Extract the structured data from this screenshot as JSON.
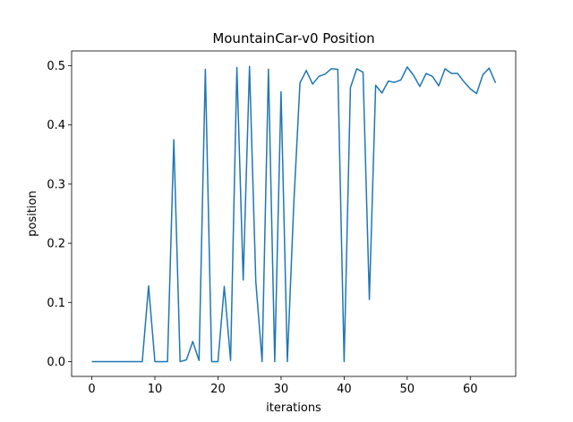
{
  "chart_data": {
    "type": "line",
    "title": "MountainCar-v0 Position",
    "xlabel": "iterations",
    "ylabel": "position",
    "xlim": [
      -3.2,
      67.2
    ],
    "ylim": [
      -0.025,
      0.525
    ],
    "xticks": [
      0,
      10,
      20,
      30,
      40,
      50,
      60
    ],
    "yticks": [
      0.0,
      0.1,
      0.2,
      0.3,
      0.4,
      0.5
    ],
    "xtick_labels": [
      "0",
      "10",
      "20",
      "30",
      "40",
      "50",
      "60"
    ],
    "ytick_labels": [
      "0.0",
      "0.1",
      "0.2",
      "0.3",
      "0.4",
      "0.5"
    ],
    "grid": false,
    "series": [
      {
        "color": "#1f77b4",
        "x": [
          0,
          1,
          2,
          3,
          4,
          5,
          6,
          7,
          8,
          9,
          10,
          11,
          12,
          13,
          14,
          15,
          16,
          17,
          18,
          19,
          20,
          21,
          22,
          23,
          24,
          25,
          26,
          27,
          28,
          29,
          30,
          31,
          32,
          33,
          34,
          35,
          36,
          37,
          38,
          39,
          40,
          41,
          42,
          43,
          44,
          45,
          46,
          47,
          48,
          49,
          50,
          51,
          52,
          53,
          54,
          55,
          56,
          57,
          58,
          59,
          60,
          61,
          62,
          63,
          64
        ],
        "y": [
          0,
          0,
          0,
          0,
          0,
          0,
          0,
          0,
          0,
          0.128,
          0,
          0,
          0,
          0.375,
          0,
          0.003,
          0.034,
          0.002,
          0.494,
          0,
          0,
          0.127,
          0.002,
          0.497,
          0.138,
          0.499,
          0.135,
          0,
          0.494,
          0,
          0.456,
          0,
          0.262,
          0.471,
          0.492,
          0.469,
          0.482,
          0.486,
          0.495,
          0.494,
          0,
          0.463,
          0.495,
          0.489,
          0.105,
          0.467,
          0.454,
          0.474,
          0.472,
          0.476,
          0.498,
          0.484,
          0.465,
          0.487,
          0.482,
          0.466,
          0.495,
          0.487,
          0.487,
          0.473,
          0.461,
          0.453,
          0.485,
          0.496,
          0.471
        ]
      }
    ]
  }
}
